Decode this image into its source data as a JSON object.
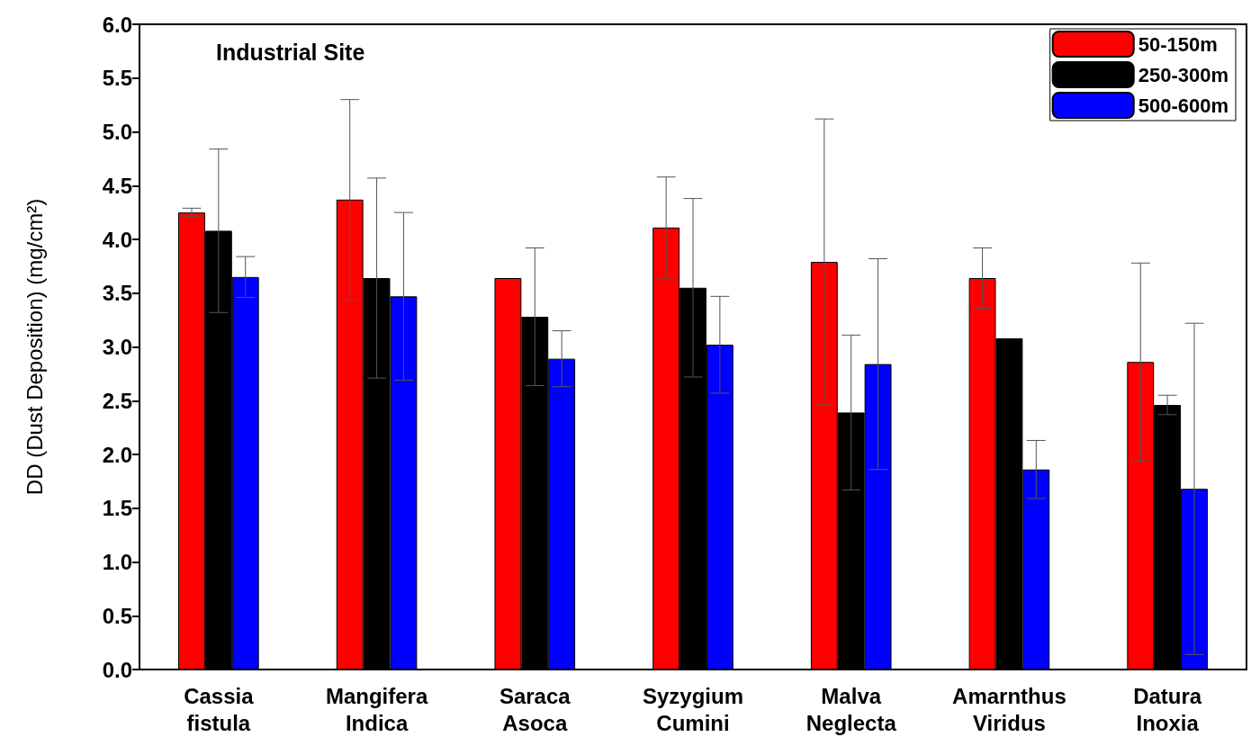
{
  "chart_data": {
    "type": "bar",
    "ylabel": "DD (Dust Deposition) (mg/cm²)",
    "categories": [
      "Cassia\nfistula",
      "Mangifera\nIndica",
      "Saraca\nAsoca",
      "Syzygium\nCumini",
      "Malva\nNeglecta",
      "Amarnthus\nViridus",
      "Datura\nInoxia"
    ],
    "series": [
      {
        "name": "50-150m",
        "color": "#ff0000",
        "values": [
          4.25,
          4.37,
          3.64,
          4.11,
          3.79,
          3.64,
          2.86
        ],
        "errors": [
          0.04,
          0.93,
          null,
          0.47,
          1.33,
          0.28,
          0.92
        ]
      },
      {
        "name": "250-300m",
        "color": "#000000",
        "values": [
          4.08,
          3.64,
          3.28,
          3.55,
          2.39,
          3.08,
          2.46
        ],
        "errors": [
          0.76,
          0.93,
          0.64,
          0.83,
          0.72,
          null,
          0.09
        ]
      },
      {
        "name": "500-600m",
        "color": "#0000ff",
        "values": [
          3.65,
          3.47,
          2.89,
          3.02,
          2.84,
          1.86,
          1.68
        ],
        "errors": [
          0.19,
          0.78,
          0.26,
          0.45,
          0.98,
          0.27,
          1.54
        ]
      }
    ],
    "ylim": [
      0,
      6
    ],
    "yticks": [
      {
        "value": 0,
        "label": "0.0"
      },
      {
        "value": 0.5,
        "label": "0.5"
      },
      {
        "value": 1,
        "label": "1.0"
      },
      {
        "value": 1.5,
        "label": "1.5"
      },
      {
        "value": 2,
        "label": "2.0"
      },
      {
        "value": 2.5,
        "label": "2.5"
      },
      {
        "value": 3,
        "label": "3.0"
      },
      {
        "value": 3.5,
        "label": "3.5"
      },
      {
        "value": 4,
        "label": "4.0"
      },
      {
        "value": 4.5,
        "label": "4.5"
      },
      {
        "value": 5,
        "label": "5.0"
      },
      {
        "value": 5.5,
        "label": "5.5"
      },
      {
        "value": 6,
        "label": "6.0"
      }
    ],
    "annotations": [
      "Industrial Site"
    ],
    "legend": "top right",
    "grid": false
  }
}
